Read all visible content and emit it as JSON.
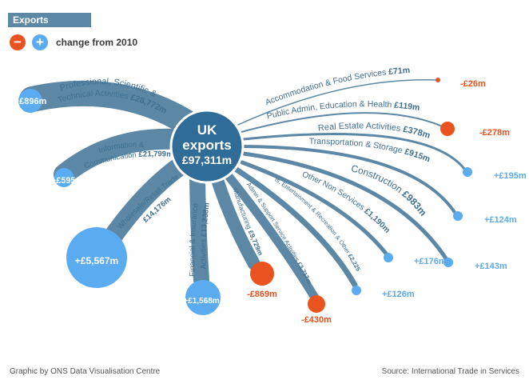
{
  "header": {
    "title": "Exports"
  },
  "legend": {
    "minus": "−",
    "plus": "+",
    "label": "change from 2010"
  },
  "center": {
    "line1": "UK",
    "line2": "exports",
    "line3": "£97,311m"
  },
  "sectors": [
    {
      "id": "professional",
      "name1": "Professional, Scientific &",
      "name2": "Technical Activities",
      "value": "£28,772m",
      "change": "+£896m",
      "sign": "plus"
    },
    {
      "id": "information",
      "name1": "Information &",
      "name2": "Communication",
      "value": "£21,799m",
      "change": "+£595m",
      "sign": "plus"
    },
    {
      "id": "wholesale",
      "name1": "Wholesale/Retail Trade",
      "name2": "",
      "value": "£14,176m",
      "change": "+£5,567m",
      "sign": "plus"
    },
    {
      "id": "financial",
      "name1": "Financial & Insurance",
      "name2": "Activities",
      "value": "£13,238m",
      "change": "+£1,568m",
      "sign": "plus"
    },
    {
      "id": "manufacturing",
      "name1": "Manufacturing",
      "name2": "",
      "value": "£9,729m",
      "change": "-£869m",
      "sign": "minus"
    },
    {
      "id": "admin-support",
      "name1": "Admin & Support Service Activities",
      "name2": "",
      "value": "£3,717m",
      "change": "-£430m",
      "sign": "minus"
    },
    {
      "id": "arts",
      "name1": "Arts, Entertainment & Recreation & Other",
      "name2": "",
      "value": "£2,225m",
      "change": "+£126m",
      "sign": "plus"
    },
    {
      "id": "other-non",
      "name1": "Other Non Services",
      "name2": "",
      "value": "£1,190m",
      "change": "+£176m",
      "sign": "plus"
    },
    {
      "id": "construction",
      "name1": "Construction",
      "name2": "",
      "value": "£983m",
      "change": "+£143m",
      "sign": "plus"
    },
    {
      "id": "transportation",
      "name1": "Transportation & Storage",
      "name2": "",
      "value": "£915m",
      "change": "+£124m",
      "sign": "plus"
    },
    {
      "id": "real-estate",
      "name1": "Real Estate Activities",
      "name2": "",
      "value": "£378m",
      "change": "+£195m",
      "sign": "plus"
    },
    {
      "id": "public-admin",
      "name1": "Public Admin, Education & Health",
      "name2": "",
      "value": "£119m",
      "change": "-£278m",
      "sign": "minus"
    },
    {
      "id": "accommodation",
      "name1": "Accommodation & Food Services",
      "name2": "",
      "value": "£71m",
      "change": "-£26m",
      "sign": "minus"
    }
  ],
  "colors": {
    "band": "#5c88a6",
    "hub": "#2f6d98",
    "plus": "#5aabef",
    "minus": "#e8531f",
    "label": "#3f6f90"
  },
  "footer": {
    "credit": "Graphic by ONS Data Visualisation Centre",
    "source": "Source: International Trade in Services"
  }
}
